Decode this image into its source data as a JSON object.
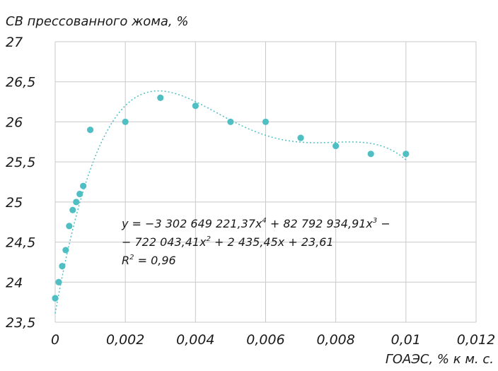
{
  "chart_data": {
    "type": "scatter",
    "ylabel": "СВ прессованного жома, %",
    "xlabel": "ГОАЭС, % к м. с.",
    "xlim": [
      0,
      0.012
    ],
    "ylim": [
      23.5,
      27
    ],
    "x_ticks": [
      "0",
      "0,002",
      "0,004",
      "0,006",
      "0,008",
      "0,01",
      "0,012"
    ],
    "y_ticks": [
      "23,5",
      "24",
      "24,5",
      "25",
      "25,5",
      "26",
      "26,5",
      "27"
    ],
    "grid": true,
    "point_color": "#4fbfc4",
    "series": [
      {
        "x": [
          0,
          0.0001,
          0.0002,
          0.0003,
          0.0004,
          0.0005,
          0.0006,
          0.0007,
          0.0008,
          0.001,
          0.002,
          0.003,
          0.004,
          0.005,
          0.006,
          0.007,
          0.008,
          0.009,
          0.01
        ],
        "y": [
          23.8,
          24.0,
          24.2,
          24.4,
          24.7,
          24.9,
          25.0,
          25.1,
          25.2,
          25.9,
          26.0,
          26.3,
          26.2,
          26.0,
          26.0,
          25.8,
          25.7,
          25.6,
          25.6
        ]
      }
    ],
    "trendline": {
      "type": "polynomial",
      "style": "dotted",
      "coefficients": [
        -3302649221.37,
        82792934.91,
        -722043.41,
        2435.45,
        23.61
      ],
      "x_range": [
        0,
        0.01
      ]
    },
    "annotation": {
      "line1": "y = −3 302 649 221,37x",
      "line1_exp": "4",
      "line1_b": " + 82 792 934,91x",
      "line1_exp2": "3",
      "line1_c": " −",
      "line2": "− 722 043,41x",
      "line2_exp": "2",
      "line2_b": " + 2 435,45x + 23,61",
      "line3": "R",
      "line3_exp": "2",
      "line3_b": " = 0,96"
    }
  }
}
